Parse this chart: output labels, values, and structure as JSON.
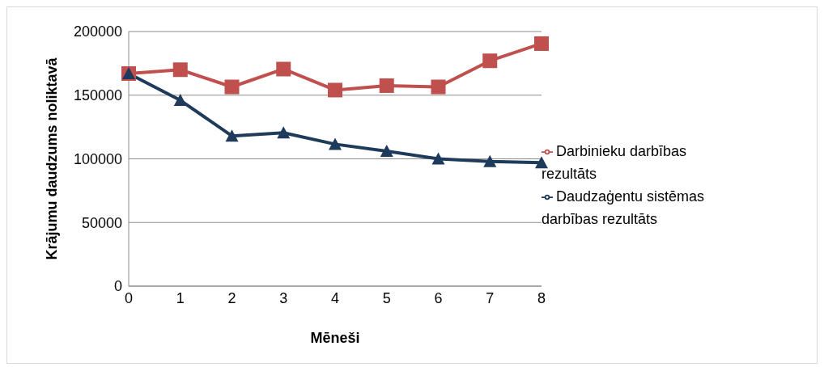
{
  "chart_data": {
    "type": "line",
    "xlabel": "Mēneši",
    "ylabel": "Krājumu daudzums noliktavā",
    "categories": [
      "0",
      "1",
      "2",
      "3",
      "4",
      "5",
      "6",
      "7",
      "8"
    ],
    "series": [
      {
        "name": "Darbinieku darbības rezultāts",
        "color": "#c0504d",
        "marker": "square",
        "values": [
          167000,
          170000,
          156500,
          170500,
          154000,
          157500,
          156500,
          177000,
          190500
        ]
      },
      {
        "name": "Daudzaģentu sistēmas darbības rezultāts",
        "color": "#1f3b5c",
        "marker": "triangle",
        "values": [
          167000,
          146000,
          118000,
          120500,
          111500,
          106000,
          100000,
          98000,
          97000
        ]
      }
    ],
    "ylim": [
      0,
      200000
    ],
    "yticks": [
      0,
      50000,
      100000,
      150000,
      200000
    ],
    "grid": "y",
    "legend": "right"
  }
}
